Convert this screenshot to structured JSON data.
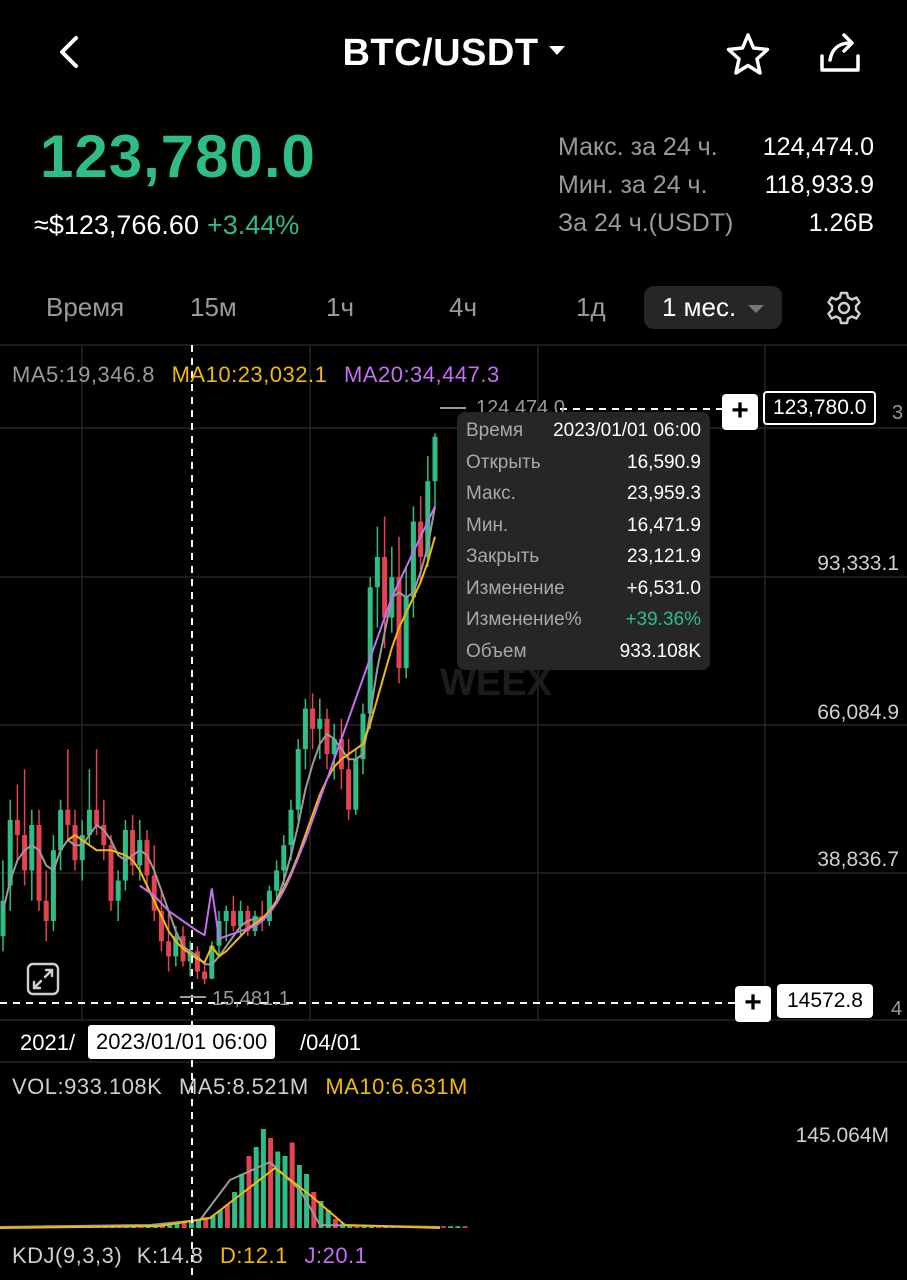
{
  "header": {
    "pair": "BTC/USDT",
    "back_icon": "chevron-left-icon",
    "favorite_icon": "star-icon",
    "share_icon": "share-icon"
  },
  "price": {
    "last": "123,780.0",
    "fiat": "≈$123,766.60",
    "change": "+3.44%"
  },
  "stats": [
    {
      "label": "Макс. за 24 ч.",
      "value": "124,474.0"
    },
    {
      "label": "Мин. за 24 ч.",
      "value": "118,933.9"
    },
    {
      "label": "За 24 ч.(USDT)",
      "value": "1.26B"
    }
  ],
  "intervals": {
    "items": [
      "Время",
      "15м",
      "1ч",
      "4ч",
      "1д"
    ],
    "active": "1 мес."
  },
  "chart": {
    "ma": {
      "ma5": "MA5:19,346.8",
      "ma10": "MA10:23,032.1",
      "ma20": "MA20:34,447.3"
    },
    "axis": [
      "93,333.1",
      "66,084.9",
      "38,836.7"
    ],
    "high_mark": "124,474.0",
    "low_mark": "15,481.1",
    "current_price_box": "123,780.0",
    "crosshair_price_box": "14572.8",
    "edge_glyph_top": "3",
    "edge_glyph_bottom": "4",
    "dates": {
      "left": "2021/",
      "right": "/04/01",
      "selected": "2023/01/01 06:00"
    },
    "watermark": "WEEX",
    "tooltip": [
      {
        "label": "Время",
        "value": "2023/01/01 06:00"
      },
      {
        "label": "Открыть",
        "value": "16,590.9"
      },
      {
        "label": "Макс.",
        "value": "23,959.3"
      },
      {
        "label": "Мин.",
        "value": "16,471.9"
      },
      {
        "label": "Закрыть",
        "value": "23,121.9"
      },
      {
        "label": "Изменение",
        "value": "+6,531.0"
      },
      {
        "label": "Изменение%",
        "value": "+39.36%"
      },
      {
        "label": "Объем",
        "value": "933.108K"
      }
    ],
    "vol": {
      "vol": "VOL:933.108K",
      "ma5": "MA5:8.521M",
      "ma10": "MA10:6.631M",
      "axis": "145.064M"
    },
    "kdj": {
      "label": "KDJ(9,3,3)",
      "k": "K:14.8",
      "d": "D:12.1",
      "j": "J:20.1"
    }
  },
  "colors": {
    "up": "#2ebd85",
    "down": "#e2434d",
    "ma5": "#9a9a9a",
    "ma10": "#f0b90b",
    "ma20": "#c46ef0"
  },
  "chart_data": {
    "type": "candlestick",
    "candles": [
      {
        "o": 25000,
        "h": 40000,
        "l": 22000,
        "c": 32000
      },
      {
        "o": 35000,
        "h": 52000,
        "l": 30000,
        "c": 48000
      },
      {
        "o": 48000,
        "h": 55000,
        "l": 40000,
        "c": 45000
      },
      {
        "o": 45000,
        "h": 58000,
        "l": 35000,
        "c": 38000
      },
      {
        "o": 38000,
        "h": 50000,
        "l": 32000,
        "c": 47000
      },
      {
        "o": 47000,
        "h": 50000,
        "l": 30000,
        "c": 32000
      },
      {
        "o": 32000,
        "h": 38000,
        "l": 24000,
        "c": 28000
      },
      {
        "o": 28000,
        "h": 45000,
        "l": 26000,
        "c": 42000
      },
      {
        "o": 42000,
        "h": 52000,
        "l": 38000,
        "c": 50000
      },
      {
        "o": 50000,
        "h": 62000,
        "l": 44000,
        "c": 47000
      },
      {
        "o": 47000,
        "h": 50000,
        "l": 38000,
        "c": 40000
      },
      {
        "o": 40000,
        "h": 48000,
        "l": 36000,
        "c": 45000
      },
      {
        "o": 45000,
        "h": 58000,
        "l": 43000,
        "c": 50000
      },
      {
        "o": 50000,
        "h": 62000,
        "l": 45000,
        "c": 47000
      },
      {
        "o": 47000,
        "h": 52000,
        "l": 40000,
        "c": 43000
      },
      {
        "o": 43000,
        "h": 45000,
        "l": 30000,
        "c": 32000
      },
      {
        "o": 32000,
        "h": 38000,
        "l": 28000,
        "c": 36000
      },
      {
        "o": 36000,
        "h": 48000,
        "l": 34000,
        "c": 46000
      },
      {
        "o": 46000,
        "h": 49000,
        "l": 37000,
        "c": 39000
      },
      {
        "o": 39000,
        "h": 48000,
        "l": 36000,
        "c": 44000
      },
      {
        "o": 44000,
        "h": 46000,
        "l": 34000,
        "c": 37000
      },
      {
        "o": 37000,
        "h": 43000,
        "l": 28000,
        "c": 30000
      },
      {
        "o": 30000,
        "h": 34000,
        "l": 22000,
        "c": 24000
      },
      {
        "o": 24000,
        "h": 30000,
        "l": 18000,
        "c": 21000
      },
      {
        "o": 21000,
        "h": 27000,
        "l": 19000,
        "c": 25000
      },
      {
        "o": 25000,
        "h": 27000,
        "l": 19000,
        "c": 20000
      },
      {
        "o": 20000,
        "h": 24000,
        "l": 17000,
        "c": 22000
      },
      {
        "o": 22000,
        "h": 23000,
        "l": 16500,
        "c": 18000
      },
      {
        "o": 18000,
        "h": 20000,
        "l": 15481,
        "c": 16500
      },
      {
        "o": 16591,
        "h": 23959,
        "l": 16472,
        "c": 23122
      },
      {
        "o": 23122,
        "h": 30000,
        "l": 21000,
        "c": 28000
      },
      {
        "o": 28000,
        "h": 31000,
        "l": 24000,
        "c": 30000
      },
      {
        "o": 30000,
        "h": 33000,
        "l": 26000,
        "c": 27000
      },
      {
        "o": 27000,
        "h": 32000,
        "l": 25000,
        "c": 30000
      },
      {
        "o": 30000,
        "h": 31000,
        "l": 25000,
        "c": 26000
      },
      {
        "o": 26000,
        "h": 30000,
        "l": 25000,
        "c": 29000
      },
      {
        "o": 29000,
        "h": 32000,
        "l": 26000,
        "c": 28000
      },
      {
        "o": 28000,
        "h": 35000,
        "l": 27000,
        "c": 34000
      },
      {
        "o": 34000,
        "h": 40000,
        "l": 32000,
        "c": 38000
      },
      {
        "o": 38000,
        "h": 45000,
        "l": 35000,
        "c": 43000
      },
      {
        "o": 43000,
        "h": 52000,
        "l": 40000,
        "c": 50000
      },
      {
        "o": 50000,
        "h": 64000,
        "l": 48000,
        "c": 62000
      },
      {
        "o": 62000,
        "h": 72000,
        "l": 58000,
        "c": 70000
      },
      {
        "o": 70000,
        "h": 73000,
        "l": 62000,
        "c": 66000
      },
      {
        "o": 66000,
        "h": 72000,
        "l": 60000,
        "c": 68000
      },
      {
        "o": 68000,
        "h": 70000,
        "l": 58000,
        "c": 61000
      },
      {
        "o": 61000,
        "h": 67000,
        "l": 56000,
        "c": 64000
      },
      {
        "o": 64000,
        "h": 68000,
        "l": 54000,
        "c": 58000
      },
      {
        "o": 58000,
        "h": 64000,
        "l": 48000,
        "c": 50000
      },
      {
        "o": 50000,
        "h": 62000,
        "l": 49000,
        "c": 60000
      },
      {
        "o": 60000,
        "h": 71000,
        "l": 57000,
        "c": 69000
      },
      {
        "o": 69000,
        "h": 96000,
        "l": 66000,
        "c": 94000
      },
      {
        "o": 94000,
        "h": 106000,
        "l": 86000,
        "c": 100000
      },
      {
        "o": 100000,
        "h": 108000,
        "l": 82000,
        "c": 88000
      },
      {
        "o": 88000,
        "h": 102000,
        "l": 85000,
        "c": 96000
      },
      {
        "o": 96000,
        "h": 104000,
        "l": 75000,
        "c": 78000
      },
      {
        "o": 78000,
        "h": 98000,
        "l": 76000,
        "c": 92000
      },
      {
        "o": 92000,
        "h": 110000,
        "l": 88000,
        "c": 107000
      },
      {
        "o": 107000,
        "h": 112000,
        "l": 95000,
        "c": 100000
      },
      {
        "o": 100000,
        "h": 120000,
        "l": 98000,
        "c": 115000
      },
      {
        "o": 115000,
        "h": 124474,
        "l": 110000,
        "c": 123780
      }
    ],
    "ma5": [
      30000,
      36000,
      40000,
      42000,
      43000,
      42000,
      39000,
      38000,
      42000,
      44000,
      43000,
      43000,
      45000,
      47000,
      46000,
      44000,
      41000,
      40000,
      41000,
      42000,
      41000,
      38000,
      34000,
      30000,
      26000,
      23000,
      22000,
      21000,
      19500,
      19346,
      21000,
      23000,
      25000,
      27000,
      28000,
      28500,
      28500,
      29500,
      32000,
      36000,
      41000,
      47000,
      54000,
      59000,
      63000,
      65000,
      64000,
      62000,
      60000,
      60000,
      61000,
      69000,
      78000,
      85000,
      92000,
      93000,
      92000,
      93000,
      97000,
      102000,
      110000
    ],
    "ma10": [
      null,
      null,
      null,
      null,
      null,
      null,
      null,
      null,
      null,
      44000,
      45000,
      44000,
      43000,
      42000,
      42000,
      42000,
      41500,
      41000,
      40000,
      38000,
      35000,
      32000,
      29000,
      26000,
      24000,
      22500,
      21500,
      20500,
      19800,
      23032,
      21000,
      22000,
      23500,
      25000,
      26500,
      27500,
      28500,
      30000,
      32000,
      34500,
      37500,
      41000,
      45000,
      49000,
      53000,
      56000,
      58500,
      60000,
      61000,
      62000,
      63000,
      67000,
      72000,
      77000,
      82000,
      86000,
      89000,
      92000,
      95000,
      99000,
      104000
    ],
    "ma20": [
      null,
      null,
      null,
      null,
      null,
      null,
      null,
      null,
      null,
      null,
      null,
      null,
      null,
      null,
      null,
      null,
      null,
      null,
      null,
      35000,
      34000,
      33000,
      31500,
      30000,
      29000,
      28000,
      27000,
      26000,
      25200,
      34447,
      24500,
      25000,
      25500,
      26000,
      26500,
      27000,
      28000,
      29500,
      31500,
      34000,
      37000,
      40500,
      44000,
      48000,
      52000,
      56000,
      60000,
      64000,
      68000,
      72000,
      76000,
      80000,
      84000,
      88000,
      92000,
      95000,
      98000,
      101000,
      104000,
      107000,
      110000
    ],
    "ylim": [
      10000,
      135000
    ],
    "volume_ylim": [
      0,
      145064000
    ]
  }
}
